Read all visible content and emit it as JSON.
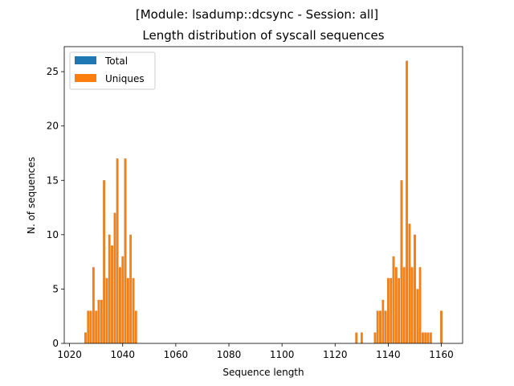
{
  "chart_data": {
    "type": "bar",
    "suptitle": "[Module: lsadump::dcsync - Session: all]",
    "title": "Length distribution of syscall sequences",
    "xlabel": "Sequence length",
    "ylabel": "N. of sequences",
    "xlim": [
      1018,
      1168
    ],
    "ylim": [
      0,
      27.3
    ],
    "xticks": [
      1020,
      1040,
      1060,
      1080,
      1100,
      1120,
      1140,
      1160
    ],
    "yticks": [
      0,
      5,
      10,
      15,
      20,
      25
    ],
    "grid": false,
    "legend_position": "top-left",
    "colors": {
      "Total": "#1f77b4",
      "Uniques": "#ff7f0e"
    },
    "bar_width": 0.8,
    "x": [
      1026,
      1027,
      1028,
      1029,
      1030,
      1031,
      1032,
      1033,
      1034,
      1035,
      1036,
      1037,
      1038,
      1039,
      1040,
      1041,
      1042,
      1043,
      1044,
      1045,
      1128,
      1130,
      1135,
      1136,
      1137,
      1138,
      1139,
      1140,
      1141,
      1142,
      1143,
      1144,
      1145,
      1146,
      1147,
      1148,
      1149,
      1150,
      1151,
      1152,
      1153,
      1154,
      1155,
      1156,
      1160
    ],
    "series": [
      {
        "name": "Total",
        "values": [
          1,
          3,
          3,
          7,
          3,
          4,
          4,
          15,
          6,
          10,
          9,
          12,
          17,
          7,
          8,
          17,
          6,
          10,
          6,
          3,
          1,
          1,
          1,
          3,
          3,
          4,
          3,
          6,
          6,
          8,
          7,
          6,
          15,
          7,
          26,
          11,
          7,
          10,
          5,
          7,
          1,
          1,
          1,
          1,
          3
        ]
      },
      {
        "name": "Uniques",
        "values": [
          1,
          3,
          3,
          7,
          3,
          4,
          4,
          15,
          6,
          10,
          9,
          12,
          17,
          7,
          8,
          17,
          6,
          10,
          6,
          3,
          1,
          1,
          1,
          3,
          3,
          4,
          3,
          6,
          6,
          8,
          7,
          6,
          15,
          7,
          26,
          11,
          7,
          10,
          5,
          7,
          1,
          1,
          1,
          1,
          3
        ]
      }
    ]
  }
}
